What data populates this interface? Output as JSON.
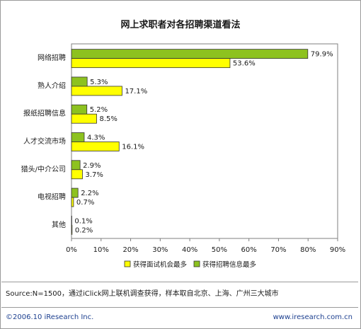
{
  "chart_data": {
    "type": "bar",
    "orientation": "horizontal",
    "title": "网上求职者对各招聘渠道看法",
    "categories": [
      "网络招聘",
      "熟人介绍",
      "报纸招聘信息",
      "人才交流市场",
      "猎头/中介公司",
      "电视招聘",
      "其他"
    ],
    "series": [
      {
        "name": "获得招聘信息最多",
        "values": [
          79.9,
          5.3,
          5.2,
          4.3,
          2.9,
          2.2,
          0.1
        ],
        "labels": [
          "79.9%",
          "5.3%",
          "5.2%",
          "4.3%",
          "2.9%",
          "2.2%",
          "0.1%"
        ],
        "color": "#8dc21f"
      },
      {
        "name": "获得面试机会最多",
        "values": [
          53.6,
          17.1,
          8.5,
          16.1,
          3.7,
          0.7,
          0.2
        ],
        "labels": [
          "53.6%",
          "17.1%",
          "8.5%",
          "16.1%",
          "3.7%",
          "0.7%",
          "0.2%"
        ],
        "color": "#ffff00"
      }
    ],
    "xlim": [
      0,
      90
    ],
    "xticks": [
      0,
      10,
      20,
      30,
      40,
      50,
      60,
      70,
      80,
      90
    ],
    "xtick_labels": [
      "0%",
      "10%",
      "20%",
      "30%",
      "40%",
      "50%",
      "60%",
      "70%",
      "80%",
      "90%"
    ],
    "legend_position": "bottom",
    "legend_order": [
      "获得面试机会最多",
      "获得招聘信息最多"
    ],
    "grid": false
  },
  "source": "Source:N=1500，通过iClick网上联机调查获得，样本取自北京、上海、广州三大城市",
  "footer": {
    "copyright": "©2006.10 iResearch Inc.",
    "website": "www.iresearch.com.cn"
  }
}
